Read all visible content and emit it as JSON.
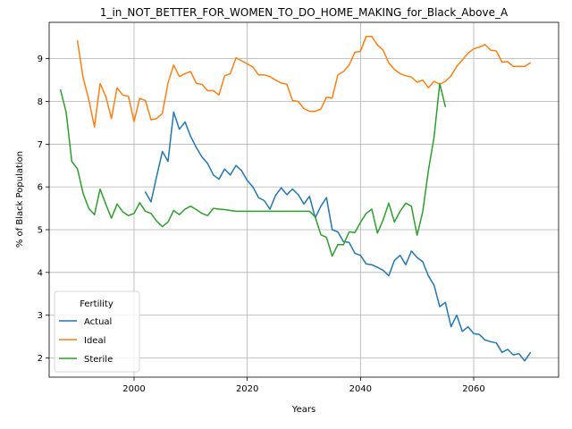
{
  "chart_data": {
    "type": "line",
    "title": "1_in_NOT_BETTER_FOR_WOMEN_TO_DO_HOME_MAKING_for_Black_Above_A",
    "xlabel": "Years",
    "ylabel": "% of Black Population",
    "xlim": [
      1985,
      2075
    ],
    "ylim": [
      1.55,
      9.85
    ],
    "xticks": [
      2000,
      2020,
      2040,
      2060
    ],
    "yticks": [
      2,
      3,
      4,
      5,
      6,
      7,
      8,
      9
    ],
    "grid": true,
    "legend": {
      "title": "Fertility",
      "placement": "lower-left"
    },
    "series": [
      {
        "name": "Actual",
        "color": "#1f77b4",
        "x": [
          2002,
          2003,
          2004,
          2005,
          2006,
          2007,
          2008,
          2009,
          2010,
          2011,
          2012,
          2013,
          2014,
          2015,
          2016,
          2017,
          2018,
          2019,
          2020,
          2021,
          2022,
          2023,
          2024,
          2025,
          2026,
          2027,
          2028,
          2029,
          2030,
          2031,
          2032,
          2033,
          2034,
          2035,
          2036,
          2037,
          2038,
          2039,
          2040,
          2041,
          2042,
          2043,
          2044,
          2045,
          2046,
          2047,
          2048,
          2049,
          2050,
          2051,
          2052,
          2053,
          2054,
          2055,
          2056,
          2057,
          2058,
          2059,
          2060,
          2061,
          2062,
          2063,
          2064,
          2065,
          2066,
          2067,
          2068,
          2069,
          2070
        ],
        "y": [
          5.88,
          5.65,
          6.25,
          6.83,
          6.6,
          7.75,
          7.35,
          7.52,
          7.18,
          6.92,
          6.7,
          6.55,
          6.28,
          6.18,
          6.42,
          6.28,
          6.5,
          6.38,
          6.15,
          6.0,
          5.75,
          5.68,
          5.48,
          5.8,
          5.98,
          5.82,
          5.95,
          5.82,
          5.6,
          5.78,
          5.28,
          5.55,
          5.75,
          5.0,
          4.95,
          4.72,
          4.7,
          4.45,
          4.4,
          4.2,
          4.18,
          4.12,
          4.05,
          3.92,
          4.28,
          4.4,
          4.18,
          4.5,
          4.35,
          4.25,
          3.92,
          3.7,
          3.2,
          3.3,
          2.73,
          3.0,
          2.62,
          2.73,
          2.57,
          2.55,
          2.42,
          2.38,
          2.35,
          2.13,
          2.2,
          2.07,
          2.1,
          1.93,
          2.12
        ]
      },
      {
        "name": "Ideal",
        "color": "#ff7f0e",
        "x": [
          1990,
          1991,
          1992,
          1993,
          1994,
          1995,
          1996,
          1997,
          1998,
          1999,
          2000,
          2001,
          2002,
          2003,
          2004,
          2005,
          2006,
          2007,
          2008,
          2009,
          2010,
          2011,
          2012,
          2013,
          2014,
          2015,
          2016,
          2017,
          2018,
          2019,
          2020,
          2021,
          2022,
          2023,
          2024,
          2025,
          2026,
          2027,
          2028,
          2029,
          2030,
          2031,
          2032,
          2033,
          2034,
          2035,
          2036,
          2037,
          2038,
          2039,
          2040,
          2041,
          2042,
          2043,
          2044,
          2045,
          2046,
          2047,
          2048,
          2049,
          2050,
          2051,
          2052,
          2053,
          2054,
          2055,
          2056,
          2057,
          2058,
          2059,
          2060,
          2061,
          2062,
          2063,
          2064,
          2065,
          2066,
          2067,
          2068,
          2069,
          2070
        ],
        "y": [
          9.42,
          8.55,
          8.05,
          7.4,
          8.42,
          8.12,
          7.6,
          8.32,
          8.15,
          8.12,
          7.53,
          8.07,
          8.02,
          7.57,
          7.6,
          7.72,
          8.43,
          8.85,
          8.58,
          8.65,
          8.7,
          8.42,
          8.4,
          8.25,
          8.25,
          8.15,
          8.6,
          8.65,
          9.02,
          8.95,
          8.88,
          8.8,
          8.62,
          8.62,
          8.58,
          8.5,
          8.43,
          8.4,
          8.02,
          8.0,
          7.83,
          7.77,
          7.77,
          7.82,
          8.1,
          8.08,
          8.62,
          8.7,
          8.85,
          9.15,
          9.17,
          9.52,
          9.52,
          9.32,
          9.2,
          8.9,
          8.75,
          8.65,
          8.6,
          8.57,
          8.45,
          8.5,
          8.32,
          8.47,
          8.4,
          8.47,
          8.6,
          8.82,
          8.97,
          9.13,
          9.23,
          9.27,
          9.33,
          9.2,
          9.18,
          8.92,
          8.93,
          8.82,
          8.82,
          8.82,
          8.9
        ]
      },
      {
        "name": "Sterile",
        "color": "#2ca02c",
        "x": [
          1987,
          1988,
          1989,
          1990,
          1991,
          1992,
          1993,
          1994,
          1995,
          1996,
          1997,
          1998,
          1999,
          2000,
          2001,
          2002,
          2003,
          2004,
          2005,
          2006,
          2007,
          2008,
          2009,
          2010,
          2011,
          2012,
          2013,
          2014,
          2015,
          2016,
          2017,
          2018,
          2019,
          2020,
          2021,
          2022,
          2023,
          2024,
          2025,
          2026,
          2027,
          2028,
          2029,
          2030,
          2031,
          2032,
          2033,
          2034,
          2035,
          2036,
          2037,
          2038,
          2039,
          2040,
          2041,
          2042,
          2043,
          2044,
          2045,
          2046,
          2047,
          2048,
          2049,
          2050,
          2051,
          2052,
          2053,
          2054,
          2055
        ],
        "y": [
          8.27,
          7.75,
          6.6,
          6.42,
          5.85,
          5.5,
          5.35,
          5.95,
          5.6,
          5.27,
          5.6,
          5.42,
          5.33,
          5.38,
          5.63,
          5.43,
          5.38,
          5.2,
          5.07,
          5.18,
          5.45,
          5.35,
          5.48,
          5.55,
          5.47,
          5.38,
          5.33,
          5.5,
          5.48,
          5.47,
          5.45,
          5.43,
          5.43,
          5.43,
          5.43,
          5.43,
          5.43,
          5.43,
          5.43,
          5.43,
          5.43,
          5.43,
          5.43,
          5.43,
          5.43,
          5.3,
          4.88,
          4.82,
          4.38,
          4.65,
          4.65,
          4.95,
          4.93,
          5.17,
          5.38,
          5.48,
          4.92,
          5.23,
          5.62,
          5.18,
          5.43,
          5.62,
          5.55,
          4.87,
          5.42,
          6.38,
          7.17,
          8.42,
          7.88
        ]
      }
    ]
  }
}
